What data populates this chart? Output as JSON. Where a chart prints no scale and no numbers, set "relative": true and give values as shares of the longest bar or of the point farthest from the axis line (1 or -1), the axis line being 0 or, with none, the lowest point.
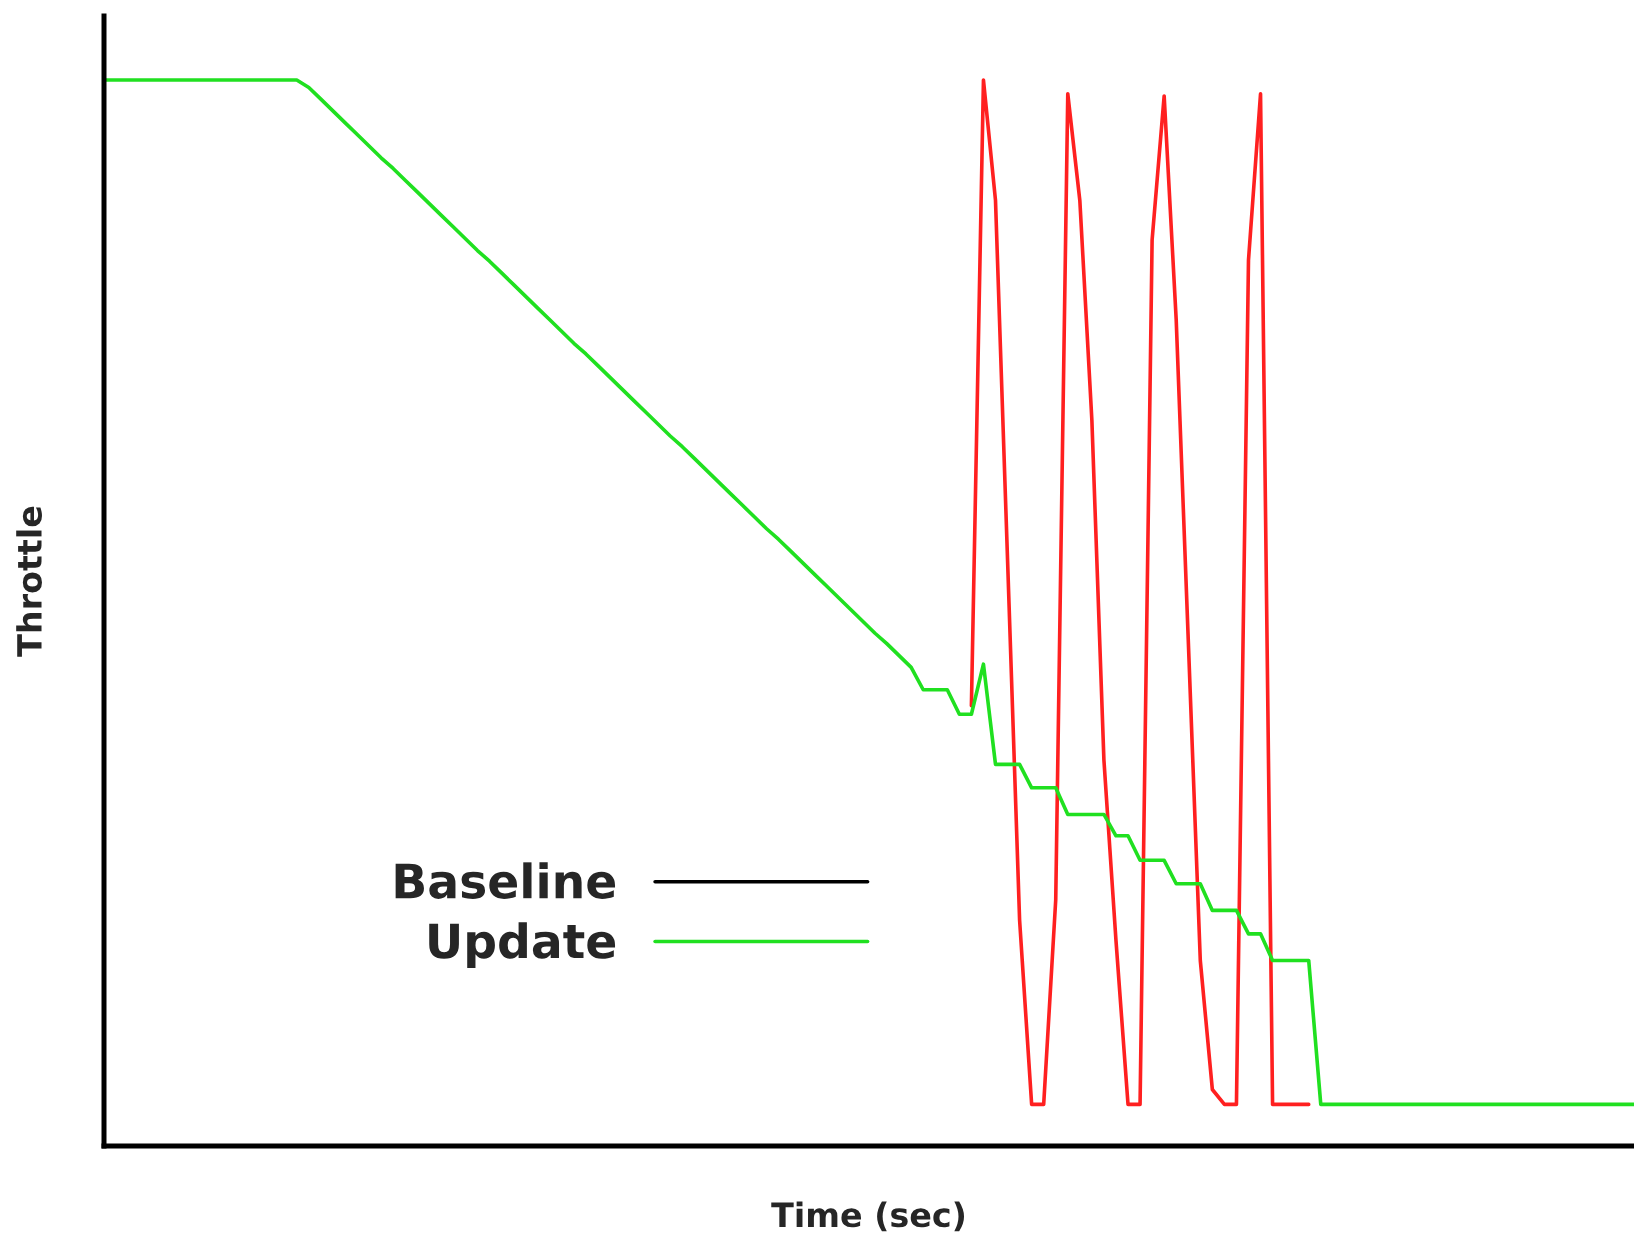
{
  "chart_data": {
    "type": "line",
    "relative": true,
    "xlabel": "Time (sec)",
    "ylabel": "Throttle",
    "legend": "bottom left",
    "tick_labels": false,
    "categories": [
      null,
      null,
      null,
      null,
      null,
      null,
      null,
      null,
      null,
      null,
      null,
      null,
      null,
      null,
      null,
      null,
      null,
      null,
      null,
      null,
      null,
      null,
      null,
      null,
      null,
      null,
      null,
      null,
      null,
      null,
      null,
      null,
      null,
      null,
      null,
      null,
      null,
      null,
      null,
      null,
      null,
      null,
      null,
      null,
      null,
      null,
      null,
      null,
      null,
      null,
      null,
      null,
      null,
      null,
      null,
      null,
      null,
      null,
      null,
      null,
      null,
      null,
      null,
      null,
      null,
      null,
      null,
      null,
      null,
      null,
      null,
      null,
      null,
      null,
      null,
      null,
      null,
      null,
      null,
      null,
      null,
      null,
      null,
      null,
      null,
      null,
      null,
      null,
      null,
      null,
      null,
      null,
      null,
      null,
      null,
      null,
      null,
      null,
      null,
      null,
      null,
      null,
      null,
      null,
      null,
      null,
      null,
      null,
      null,
      null,
      null,
      null,
      null,
      null,
      null,
      null,
      null,
      null,
      null,
      null,
      null,
      null,
      null,
      null,
      null,
      null,
      null,
      null
    ],
    "series": [
      {
        "name": "Baseline",
        "color": "#000000",
        "values": [
          null,
          null,
          null,
          null,
          null,
          null,
          null,
          null,
          null,
          null,
          null,
          null,
          null,
          null,
          null,
          null,
          null,
          null,
          null,
          null,
          null,
          null,
          null,
          null,
          null,
          null,
          null,
          null,
          null,
          null,
          null,
          null,
          null,
          null,
          null,
          null,
          null,
          null,
          null,
          null,
          null,
          null,
          null,
          null,
          null,
          null,
          null,
          null,
          null,
          null,
          null,
          null,
          null,
          null,
          null,
          null,
          null,
          null,
          null,
          null,
          null,
          null,
          null,
          null,
          null,
          null,
          null,
          null,
          null,
          null,
          null,
          null,
          null,
          null,
          null,
          null,
          null,
          null,
          null,
          null,
          null,
          null,
          null,
          null,
          null,
          null,
          null,
          null,
          null,
          null,
          null,
          null,
          null,
          null,
          null,
          null,
          null,
          null,
          null,
          null,
          null,
          null,
          null,
          null,
          null,
          null,
          null,
          null,
          null,
          null,
          null,
          null,
          null,
          null,
          null,
          null,
          null,
          null,
          null,
          null,
          null,
          null,
          null,
          null,
          null,
          null,
          null,
          null
        ]
      },
      {
        "color": "#ff2020",
        "values": [
          null,
          null,
          null,
          null,
          null,
          null,
          null,
          null,
          null,
          null,
          null,
          null,
          null,
          null,
          null,
          null,
          null,
          null,
          null,
          null,
          null,
          null,
          null,
          null,
          null,
          null,
          null,
          null,
          null,
          null,
          null,
          null,
          null,
          null,
          null,
          null,
          null,
          null,
          null,
          null,
          null,
          null,
          null,
          null,
          null,
          null,
          null,
          null,
          null,
          null,
          null,
          null,
          null,
          null,
          null,
          null,
          null,
          null,
          null,
          null,
          null,
          null,
          null,
          null,
          null,
          null,
          null,
          null,
          null,
          null,
          null,
          null,
          0.413,
          1.0,
          0.887,
          0.55,
          0.212,
          0.039,
          0.039,
          0.231,
          0.987,
          0.887,
          0.681,
          0.362,
          0.193,
          0.039,
          0.039,
          0.85,
          0.985,
          0.775,
          0.475,
          0.174,
          0.053,
          0.039,
          0.039,
          0.831,
          0.987,
          0.039,
          0.039,
          0.039,
          0.039,
          null,
          null,
          null,
          null,
          null,
          null,
          null,
          null,
          null,
          null,
          null,
          null,
          null,
          null,
          null,
          null,
          null,
          null,
          null,
          null,
          null,
          null,
          null,
          null,
          null,
          null,
          null
        ]
      },
      {
        "name": "Update",
        "color": "#20e020",
        "values": [
          1.0,
          1.0,
          1.0,
          1.0,
          1.0,
          1.0,
          1.0,
          1.0,
          1.0,
          1.0,
          1.0,
          1.0,
          1.0,
          1.0,
          1.0,
          1.0,
          1.0,
          0.993,
          0.982,
          0.971,
          0.96,
          0.949,
          0.938,
          0.927,
          0.917,
          0.906,
          0.895,
          0.884,
          0.873,
          0.862,
          0.851,
          0.84,
          0.83,
          0.819,
          0.808,
          0.797,
          0.786,
          0.775,
          0.764,
          0.753,
          0.743,
          0.732,
          0.721,
          0.71,
          0.699,
          0.688,
          0.677,
          0.666,
          0.656,
          0.645,
          0.634,
          0.623,
          0.612,
          0.601,
          0.59,
          0.579,
          0.569,
          0.558,
          0.547,
          0.536,
          0.525,
          0.514,
          0.503,
          0.492,
          0.481,
          0.471,
          0.46,
          0.449,
          0.428,
          0.428,
          0.428,
          0.405,
          0.405,
          0.452,
          0.358,
          0.358,
          0.358,
          0.336,
          0.336,
          0.336,
          0.311,
          0.311,
          0.311,
          0.311,
          0.291,
          0.291,
          0.268,
          0.268,
          0.268,
          0.246,
          0.246,
          0.246,
          0.221,
          0.221,
          0.221,
          0.199,
          0.199,
          0.174,
          0.174,
          0.174,
          0.174,
          0.039,
          0.039,
          0.039,
          0.039,
          0.039,
          0.039,
          0.039,
          0.039,
          0.039,
          0.039,
          0.039,
          0.039,
          0.039,
          0.039,
          0.039,
          0.039,
          0.039,
          0.039,
          0.039,
          0.039,
          0.039,
          0.039,
          0.039,
          0.039,
          0.039,
          0.039,
          0.039
        ]
      }
    ]
  }
}
